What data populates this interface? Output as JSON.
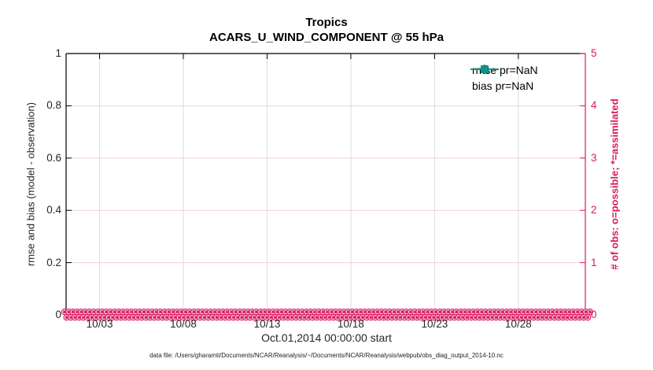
{
  "figure": {
    "title": "Tropics",
    "subtitle": "ACARS_U_WIND_COMPONENT @ 55 hPa",
    "footer": "data file: /Users/gharamti/Documents/NCAR/Reanalysis/~/Documents/NCAR/Reanalysis/webpub/obs_diag_output_2014-10.nc"
  },
  "legend": {
    "items": [
      {
        "label": "rmse pr=NaN",
        "color": "#000000",
        "marker": "filled-circle"
      },
      {
        "label": "bias pr=NaN",
        "color": "#0d9189",
        "marker": "filled-square"
      }
    ]
  },
  "chart_data": {
    "type": "line",
    "title": "Tropics",
    "subtitle": "ACARS_U_WIND_COMPONENT @ 55 hPa",
    "xlabel": "Oct.01,2014 00:00:00 start",
    "ylabel_left": "rmse and bias (model - observation)",
    "ylabel_right": "# of obs: o=possible; *=assimilated",
    "x_tick_labels": [
      "10/03",
      "10/08",
      "10/13",
      "10/18",
      "10/23",
      "10/28"
    ],
    "x_tick_days": [
      2,
      7,
      12,
      17,
      22,
      27
    ],
    "x_span_days": 31,
    "x_start": "Oct.01,2014 00:00:00",
    "y_left_tick_labels": [
      "1",
      "0.8",
      "0.6",
      "0.4",
      "0.2",
      "0"
    ],
    "y_right_tick_labels": [
      "5",
      "4",
      "3",
      "2",
      "1",
      "0"
    ],
    "ylim_left": [
      0,
      1
    ],
    "ylim_right": [
      0,
      5
    ],
    "grid": {
      "x": true,
      "y": true,
      "legend_box": false
    },
    "series": [
      {
        "name": "rmse",
        "legend": "rmse pr=NaN",
        "axis": "left",
        "color": "#000000",
        "marker": "filled-circle",
        "values": "NaN (pr=NaN — no curve drawn)"
      },
      {
        "name": "bias",
        "legend": "bias pr=NaN",
        "axis": "left",
        "color": "#0d9189",
        "marker": "filled-square",
        "values": "NaN (pr=NaN — no curve drawn)"
      },
      {
        "name": "# obs possible (o)",
        "axis": "right",
        "color": "#d81b60",
        "marker": "o",
        "n_points": 124,
        "constant_value": 0
      },
      {
        "name": "# obs assimilated (*)",
        "axis": "right",
        "color": "#d81b60",
        "marker": "*",
        "n_points": 124,
        "constant_value": 0
      }
    ],
    "colors": {
      "obs_axis": "#d81b60",
      "grid_x": "#dcdcdc",
      "grid_y": "#f3cfdc",
      "axis_text": "#262626",
      "bias_teal": "#0d9189"
    }
  }
}
